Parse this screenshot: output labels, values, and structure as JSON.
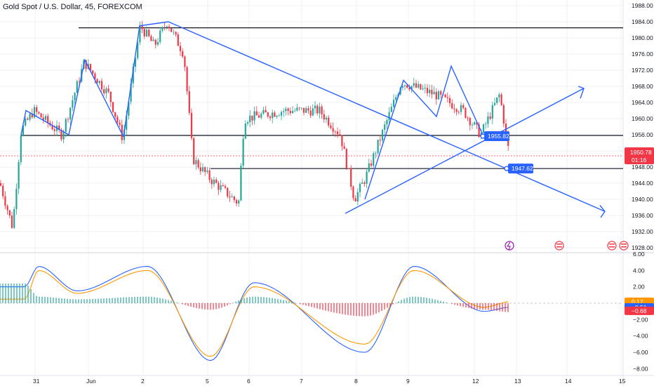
{
  "header": {
    "title": "Gold Spot / U.S. Dollar, 45, FOREXCOM"
  },
  "colors": {
    "up": "#26a69a",
    "down": "#f23645",
    "drawing": "#2962ff",
    "macd": "#2962ff",
    "signal": "#ff9800",
    "level": "#131722"
  },
  "price_axis": {
    "ticks": [
      "1988.00",
      "1984.00",
      "1980.00",
      "1976.00",
      "1972.00",
      "1968.00",
      "1964.00",
      "1960.00",
      "1956.00",
      "1952.00",
      "1948.00",
      "1944.00",
      "1940.00",
      "1936.00",
      "1932.00",
      "1928.00"
    ],
    "current_price": "1950.78",
    "countdown": "01:16"
  },
  "macd_axis": {
    "ticks": [
      "6.00",
      "4.00",
      "2.00",
      "−2.00",
      "−4.00",
      "−6.00",
      "−8.00"
    ],
    "tags": [
      "0.17",
      "−0.51",
      "−0.68"
    ]
  },
  "time_axis": {
    "labels": [
      "31",
      "Jun",
      "2",
      "5",
      "6",
      "7",
      "8",
      "9",
      "12",
      "13",
      "14",
      "15"
    ]
  },
  "annotations": {
    "label_1": "1955.82",
    "label_2": "1947.62"
  },
  "chart_data": [
    {
      "type": "candlestick",
      "title": "Gold Spot / U.S. Dollar, 45, FOREXCOM",
      "ylim": [
        1927,
        1990
      ],
      "x": [
        "31",
        "Jun",
        "2",
        "5",
        "6",
        "7",
        "8",
        "9",
        "12",
        "13",
        "14",
        "15"
      ],
      "key_points": [
        {
          "x": "30",
          "close": 1944
        },
        {
          "x": "30",
          "close": 1933
        },
        {
          "x": "31",
          "close": 1957
        },
        {
          "x": "31",
          "close": 1962
        },
        {
          "x": "31",
          "close": 1956
        },
        {
          "x": "31",
          "close": 1974
        },
        {
          "x": "Jun",
          "close": 1966
        },
        {
          "x": "Jun",
          "close": 1955
        },
        {
          "x": "2",
          "close": 1983
        },
        {
          "x": "2",
          "close": 1978
        },
        {
          "x": "2",
          "close": 1984
        },
        {
          "x": "5",
          "close": 1976
        },
        {
          "x": "5",
          "close": 1950
        },
        {
          "x": "5",
          "close": 1945
        },
        {
          "x": "5",
          "close": 1939
        },
        {
          "x": "6",
          "close": 1960
        },
        {
          "x": "7",
          "close": 1962
        },
        {
          "x": "7",
          "close": 1962
        },
        {
          "x": "8",
          "close": 1956
        },
        {
          "x": "8",
          "close": 1940
        },
        {
          "x": "8",
          "close": 1945
        },
        {
          "x": "9",
          "close": 1969
        },
        {
          "x": "9",
          "close": 1966
        },
        {
          "x": "12",
          "close": 1962
        },
        {
          "x": "12",
          "close": 1956
        },
        {
          "x": "12",
          "close": 1966
        },
        {
          "x": "13",
          "close": 1950.78
        }
      ],
      "horizontal_levels": [
        1982.5,
        1955.82,
        1947.62
      ],
      "drawings": [
        {
          "from": {
            "x": "2",
            "y": 1984
          },
          "to": {
            "x": "14",
            "y": 1937
          }
        },
        {
          "from": {
            "x": "8",
            "y": 1939
          },
          "to": {
            "x": "14",
            "y": 1967
          }
        }
      ],
      "price_labels": [
        1955.82,
        1947.62
      ],
      "current_price": 1950.78
    },
    {
      "type": "line",
      "title": "MACD",
      "ylim": [
        -8.5,
        6.5
      ],
      "x": [
        "31",
        "Jun",
        "2",
        "5",
        "6",
        "7",
        "8",
        "9",
        "12",
        "13"
      ],
      "series": [
        {
          "values": [
            2,
            4.5,
            1.5,
            4.5,
            -7,
            2.5,
            -6,
            4.5,
            -1,
            -0.51
          ]
        },
        {
          "values": [
            0.5,
            4,
            1.2,
            4,
            -6.5,
            2,
            -5,
            4,
            -0.5,
            0.17
          ]
        }
      ],
      "histogram": [
        -0.68
      ],
      "axis_tags": [
        0.17,
        -0.51,
        -0.68
      ]
    }
  ]
}
